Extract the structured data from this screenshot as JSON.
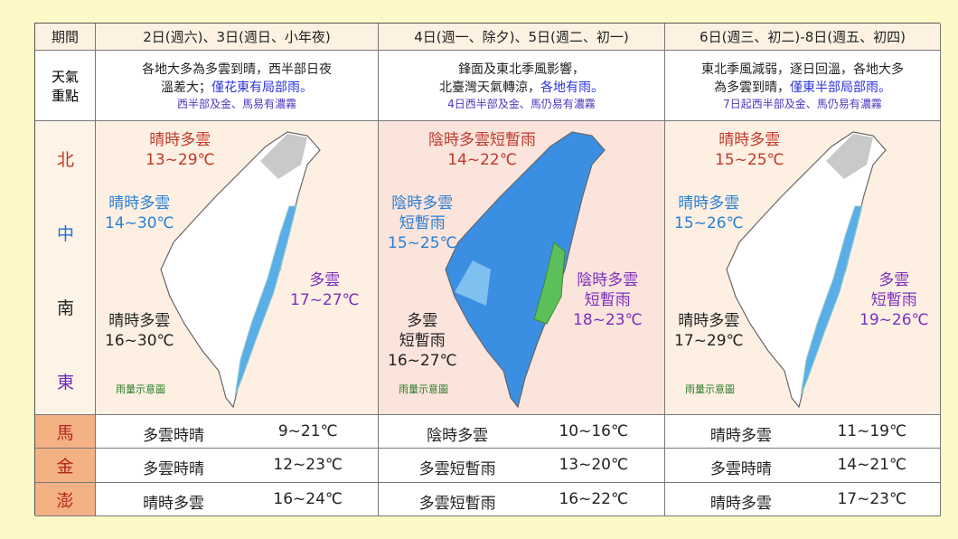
{
  "table": {
    "header": [
      "期間",
      "2日(週六)、3日(週日、小年夜)",
      "4日(週一、除夕)、5日(週二、初一)",
      "6日(週三、初二)-8日(週五、初四)"
    ],
    "focus_label": [
      "天氣",
      "重點"
    ],
    "focus": [
      {
        "line1": "各地大多為多雲到晴，西半部日夜",
        "line2": "溫差大；",
        "line2_highlight": "僅花東有局部雨。",
        "note": "西半部及金、馬易有濃霧"
      },
      {
        "line1": "鋒面及東北季風影響，",
        "line2": "北臺灣天氣轉涼，",
        "line2_highlight": "各地有雨。",
        "note": "4日西半部及金、馬仍易有濃霧"
      },
      {
        "line1": "東北季風減弱，逐日回溫，各地大多",
        "line2": "為多雲到晴，",
        "line2_highlight": "僅東半部局部雨。",
        "note": "7日起西半部及金、馬仍易有濃霧"
      }
    ],
    "regions": [
      "北",
      "中",
      "南",
      "東"
    ],
    "maps": [
      {
        "legend": "雨量示意圖",
        "areas": [
          {
            "weather": [
              "晴時多雲"
            ],
            "temp": "13~29℃"
          },
          {
            "weather": [
              "晴時多雲"
            ],
            "temp": "14~30℃"
          },
          {
            "weather": [
              "晴時多雲"
            ],
            "temp": "16~30℃"
          },
          {
            "weather": [
              "多雲"
            ],
            "temp": "17~27℃"
          }
        ]
      },
      {
        "legend": "雨量示意圖",
        "areas": [
          {
            "weather": [
              "陰時多雲短暫雨"
            ],
            "temp": "14~22℃"
          },
          {
            "weather": [
              "陰時多雲",
              "短暫雨"
            ],
            "temp": "15~25℃"
          },
          {
            "weather": [
              "多雲",
              "短暫雨"
            ],
            "temp": "16~27℃"
          },
          {
            "weather": [
              "陰時多雲",
              "短暫雨"
            ],
            "temp": "18~23℃"
          }
        ]
      },
      {
        "legend": "雨量示意圖",
        "areas": [
          {
            "weather": [
              "晴時多雲"
            ],
            "temp": "15~25℃"
          },
          {
            "weather": [
              "晴時多雲"
            ],
            "temp": "15~26℃"
          },
          {
            "weather": [
              "晴時多雲"
            ],
            "temp": "17~29℃"
          },
          {
            "weather": [
              "多雲",
              "短暫雨"
            ],
            "temp": "19~26℃"
          }
        ]
      }
    ],
    "islands": [
      {
        "name": "馬",
        "cells": [
          {
            "weather": "多雲時晴",
            "temp": "9~21℃"
          },
          {
            "weather": "陰時多雲",
            "temp": "10~16℃"
          },
          {
            "weather": "晴時多雲",
            "temp": "11~19℃"
          }
        ]
      },
      {
        "name": "金",
        "cells": [
          {
            "weather": "多雲時晴",
            "temp": "12~23℃"
          },
          {
            "weather": "多雲短暫雨",
            "temp": "13~20℃"
          },
          {
            "weather": "多雲時晴",
            "temp": "14~21℃"
          }
        ]
      },
      {
        "name": "澎",
        "cells": [
          {
            "weather": "晴時多雲",
            "temp": "16~24℃"
          },
          {
            "weather": "多雲短暫雨",
            "temp": "16~22℃"
          },
          {
            "weather": "晴時多雲",
            "temp": "17~23℃"
          }
        ]
      }
    ]
  }
}
